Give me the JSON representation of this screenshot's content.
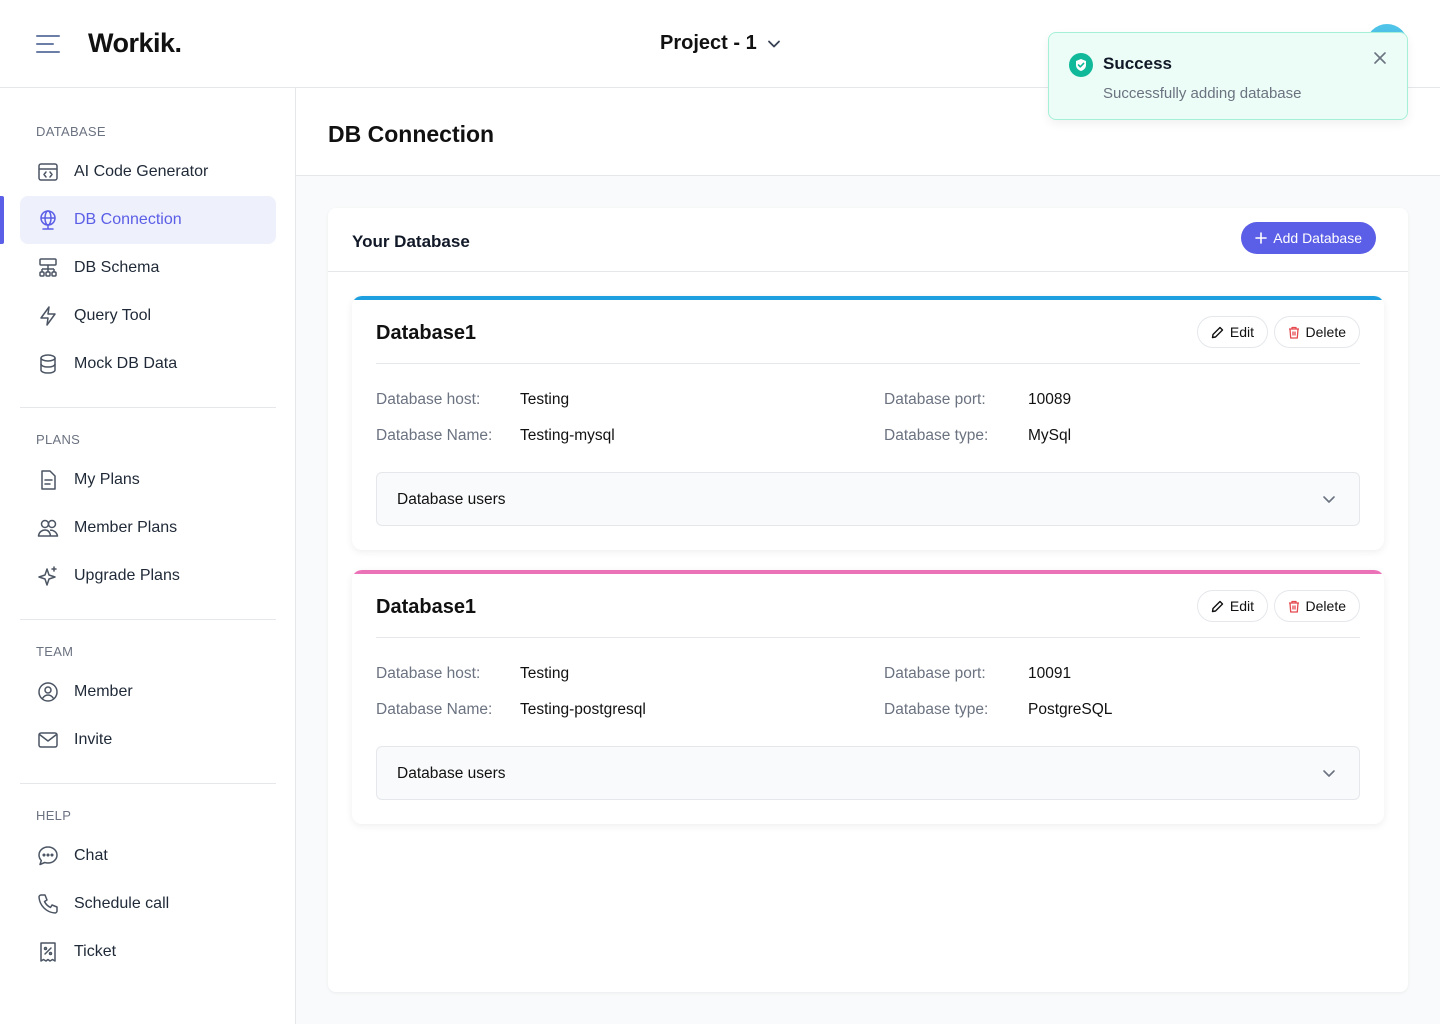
{
  "header": {
    "logo": "Workik.",
    "project": "Project - 1"
  },
  "toast": {
    "title": "Success",
    "message": "Successfully adding database"
  },
  "sidebar": {
    "sections": [
      {
        "label": "DATABASE",
        "items": [
          {
            "label": "AI Code Generator",
            "icon": "code-window-icon"
          },
          {
            "label": "DB Connection",
            "icon": "globe-icon",
            "active": true
          },
          {
            "label": "DB Schema",
            "icon": "schema-icon"
          },
          {
            "label": "Query Tool",
            "icon": "lightning-icon"
          },
          {
            "label": "Mock DB Data",
            "icon": "database-icon"
          }
        ]
      },
      {
        "label": "PLANS",
        "items": [
          {
            "label": "My Plans",
            "icon": "document-icon"
          },
          {
            "label": "Member Plans",
            "icon": "users-icon"
          },
          {
            "label": "Upgrade Plans",
            "icon": "sparkle-icon"
          }
        ]
      },
      {
        "label": "TEAM",
        "items": [
          {
            "label": "Member",
            "icon": "user-circle-icon"
          },
          {
            "label": "Invite",
            "icon": "mail-icon"
          }
        ]
      },
      {
        "label": "HELP",
        "items": [
          {
            "label": "Chat",
            "icon": "chat-icon"
          },
          {
            "label": "Schedule call",
            "icon": "phone-icon"
          },
          {
            "label": "Ticket",
            "icon": "ticket-icon"
          }
        ]
      }
    ]
  },
  "main": {
    "page_title": "DB Connection",
    "panel_title": "Your Database",
    "add_button": "Add Database",
    "labels": {
      "host": "Database host:",
      "name": "Database Name:",
      "port": "Database port:",
      "type": "Database type:",
      "users": "Database users",
      "edit": "Edit",
      "delete": "Delete"
    },
    "databases": [
      {
        "name": "Database1",
        "host": "Testing",
        "db_name": "Testing-mysql",
        "port": "10089",
        "type": "MySql",
        "accent": "#1ea0e0"
      },
      {
        "name": "Database1",
        "host": "Testing",
        "db_name": "Testing-postgresql",
        "port": "10091",
        "type": "PostgreSQL",
        "accent": "#ec72b8"
      }
    ]
  },
  "colors": {
    "primary": "#5b5ee6",
    "success": "#10b99a"
  }
}
